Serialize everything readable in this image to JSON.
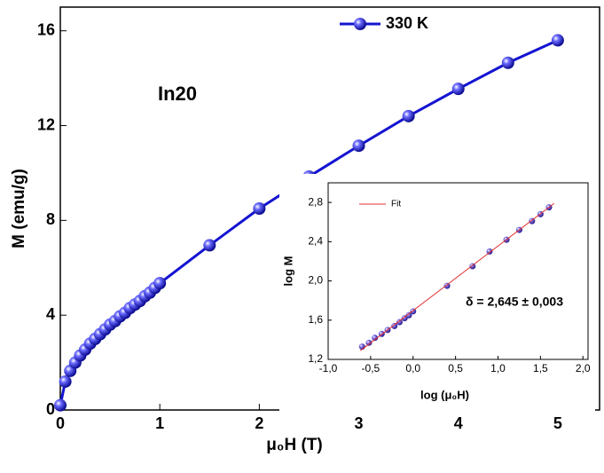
{
  "chart_data": [
    {
      "type": "line",
      "xlabel": "μ₀H (T)",
      "ylabel": "M (emu/g)",
      "annotation": "In20",
      "annotation_color": "#e02020",
      "xlim": [
        0,
        5.42
      ],
      "ylim": [
        0,
        17
      ],
      "xticks": [
        0,
        1,
        2,
        3,
        4,
        5
      ],
      "yticks": [
        0,
        4,
        8,
        12,
        16
      ],
      "legend": "top-right",
      "series": [
        {
          "name": "330 K",
          "color": "#1414d2",
          "mode": "lines+markers",
          "x": [
            0,
            0.05,
            0.1,
            0.15,
            0.2,
            0.25,
            0.3,
            0.35,
            0.4,
            0.45,
            0.5,
            0.55,
            0.6,
            0.65,
            0.7,
            0.75,
            0.8,
            0.85,
            0.9,
            0.95,
            1.0,
            1.5,
            2,
            2.5,
            3,
            3.5,
            4,
            4.5,
            5
          ],
          "values": [
            0.2,
            1.2,
            1.65,
            2.0,
            2.3,
            2.55,
            2.8,
            3.0,
            3.2,
            3.4,
            3.6,
            3.75,
            3.95,
            4.1,
            4.3,
            4.45,
            4.6,
            4.8,
            4.95,
            5.15,
            5.35,
            6.95,
            8.5,
            9.85,
            11.15,
            12.4,
            13.55,
            14.65,
            15.6
          ]
        }
      ]
    },
    {
      "type": "scatter",
      "xlabel": "log (μ₀H)",
      "ylabel": "log M",
      "annotation": "δ = 2,645 ± 0,003",
      "annotation_color": "#000000",
      "xlim": [
        -1,
        2.06
      ],
      "ylim": [
        1.2,
        3.0
      ],
      "xticks": [
        {
          "value": -1,
          "label": "-1,0"
        },
        {
          "value": -0.5,
          "label": "-0,5"
        },
        {
          "value": 0,
          "label": "0,0"
        },
        {
          "value": 0.5,
          "label": "0,5"
        },
        {
          "value": 1,
          "label": "1,0"
        },
        {
          "value": 1.5,
          "label": "1,5"
        },
        {
          "value": 2,
          "label": "2,0"
        }
      ],
      "yticks": [
        {
          "value": 1.2,
          "label": "1,2"
        },
        {
          "value": 1.6,
          "label": "1,6"
        },
        {
          "value": 2.0,
          "label": "2,0"
        },
        {
          "value": 2.4,
          "label": "2,4"
        },
        {
          "value": 2.8,
          "label": "2,8"
        }
      ],
      "legend": "top-left",
      "series": [
        {
          "color": "#4b3cc8",
          "mode": "markers",
          "x": [
            -0.6,
            -0.52,
            -0.45,
            -0.37,
            -0.3,
            -0.22,
            -0.16,
            -0.1,
            -0.05,
            0,
            0.4,
            0.7,
            0.9,
            1.1,
            1.25,
            1.4,
            1.5,
            1.6
          ],
          "values": [
            1.33,
            1.37,
            1.42,
            1.46,
            1.5,
            1.54,
            1.58,
            1.62,
            1.65,
            1.69,
            1.95,
            2.15,
            2.3,
            2.42,
            2.52,
            2.61,
            2.68,
            2.75
          ]
        },
        {
          "name": "Fit",
          "color": "#e03030",
          "mode": "lines",
          "x": [
            -0.62,
            1.66
          ],
          "values": [
            1.29,
            2.79
          ]
        }
      ]
    }
  ]
}
